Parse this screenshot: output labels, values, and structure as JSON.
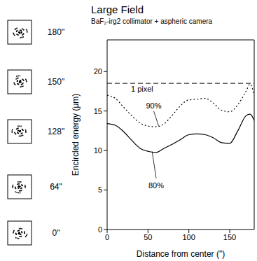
{
  "chart_data": {
    "type": "line",
    "title": "Large Field",
    "subtitle": "BaF₂-irg2 collimator + aspheric camera",
    "x_label": "Distance from center (\")",
    "y_label": "Encircled energy (μm)",
    "x": [
      0,
      10,
      20,
      30,
      40,
      50,
      60,
      70,
      80,
      90,
      100,
      110,
      120,
      130,
      140,
      150,
      160,
      170,
      175,
      180
    ],
    "series": [
      {
        "name": "90%",
        "color": "#000000",
        "line_style": "dotted",
        "values": [
          17.0,
          16.6,
          15.5,
          14.4,
          13.5,
          13.1,
          13.0,
          13.4,
          14.5,
          15.7,
          16.4,
          16.5,
          16.6,
          16.0,
          15.1,
          14.9,
          15.8,
          17.5,
          18.4,
          17.0
        ]
      },
      {
        "name": "80%",
        "color": "#000000",
        "line_style": "solid",
        "values": [
          13.4,
          13.2,
          12.4,
          11.3,
          10.3,
          9.9,
          9.75,
          10.3,
          10.8,
          11.4,
          12.0,
          12.1,
          12.0,
          11.6,
          11.0,
          10.9,
          12.5,
          14.4,
          14.6,
          13.8
        ]
      }
    ],
    "reference_lines": [
      {
        "label": "1 pixel",
        "y": 18.5,
        "line_style": "dashed",
        "color": "#000000"
      }
    ],
    "annotations": [
      {
        "text": "90%",
        "x": 57,
        "y": 15.6,
        "target_x": 63,
        "target_y": 13.1
      },
      {
        "text": "80%",
        "x": 60,
        "y": 5.5,
        "target_x": 55,
        "target_y": 9.9
      }
    ],
    "spot_diagrams": [
      "180\"",
      "150\"",
      "128\"",
      "64\"",
      "0\""
    ],
    "xlim": [
      0,
      180
    ],
    "ylim": [
      0,
      24
    ],
    "xticks": [
      0,
      50,
      100,
      150
    ],
    "yticks": [
      0,
      5,
      10,
      15,
      20
    ],
    "grid": false
  }
}
